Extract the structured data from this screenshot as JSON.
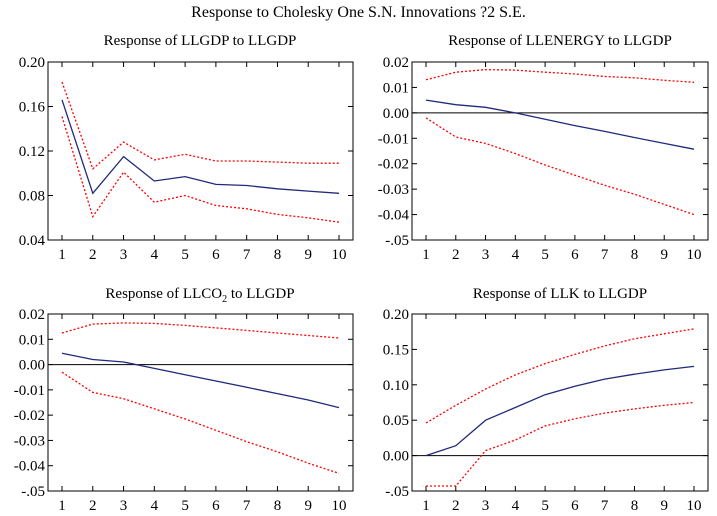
{
  "figure": {
    "title": "Response to Cholesky One S.N. Innovations ?2 S.E."
  },
  "colors": {
    "response": "#1f2a7a",
    "bands": "#ff0000",
    "zero_line": "#000000",
    "frame": "#000000"
  },
  "chart_data": [
    {
      "type": "line",
      "title": "Response of LLGDP to LLGDP",
      "title_sub": "",
      "title_rest": "",
      "x": [
        1,
        2,
        3,
        4,
        5,
        6,
        7,
        8,
        9,
        10
      ],
      "xlim": [
        1,
        10
      ],
      "ylim": [
        0.04,
        0.2
      ],
      "yticks": [
        0.04,
        0.08,
        0.12,
        0.16,
        0.2
      ],
      "ytick_labels": [
        "0.04",
        "0.08",
        "0.12",
        "0.16",
        "0.20"
      ],
      "zero_line": false,
      "series": [
        {
          "role": "response",
          "values": [
            0.166,
            0.082,
            0.115,
            0.093,
            0.097,
            0.09,
            0.089,
            0.086,
            0.084,
            0.082
          ]
        },
        {
          "role": "upper",
          "values": [
            0.182,
            0.104,
            0.128,
            0.112,
            0.117,
            0.111,
            0.111,
            0.11,
            0.109,
            0.109
          ]
        },
        {
          "role": "lower",
          "values": [
            0.151,
            0.061,
            0.101,
            0.074,
            0.08,
            0.071,
            0.068,
            0.063,
            0.06,
            0.056
          ]
        }
      ]
    },
    {
      "type": "line",
      "title": "Response of LLENERGY to LLGDP",
      "title_sub": "",
      "title_rest": "",
      "x": [
        1,
        2,
        3,
        4,
        5,
        6,
        7,
        8,
        9,
        10
      ],
      "xlim": [
        1,
        10
      ],
      "ylim": [
        -0.05,
        0.02
      ],
      "yticks": [
        -0.05,
        -0.04,
        -0.03,
        -0.02,
        -0.01,
        0.0,
        0.01,
        0.02
      ],
      "ytick_labels": [
        "-.05",
        "-0.04",
        "-0.03",
        "-0.02",
        "-0.01",
        "0.00",
        "0.01",
        "0.02"
      ],
      "zero_line": true,
      "series": [
        {
          "role": "response",
          "values": [
            0.005,
            0.0032,
            0.0022,
            0.0,
            -0.0025,
            -0.005,
            -0.0073,
            -0.0097,
            -0.012,
            -0.0143
          ]
        },
        {
          "role": "upper",
          "values": [
            0.013,
            0.016,
            0.017,
            0.0168,
            0.016,
            0.0153,
            0.0143,
            0.0138,
            0.0128,
            0.012
          ]
        },
        {
          "role": "lower",
          "values": [
            -0.002,
            -0.0095,
            -0.012,
            -0.016,
            -0.0205,
            -0.0245,
            -0.0285,
            -0.032,
            -0.036,
            -0.04
          ]
        }
      ]
    },
    {
      "type": "line",
      "title": "Response of LLCO",
      "title_sub": "2",
      "title_rest": " to LLGDP",
      "x": [
        1,
        2,
        3,
        4,
        5,
        6,
        7,
        8,
        9,
        10
      ],
      "xlim": [
        1,
        10
      ],
      "ylim": [
        -0.05,
        0.02
      ],
      "yticks": [
        -0.05,
        -0.04,
        -0.03,
        -0.02,
        -0.01,
        0.0,
        0.01,
        0.02
      ],
      "ytick_labels": [
        "-.05",
        "-0.04",
        "-0.03",
        "-0.02",
        "-0.01",
        "0.00",
        "0.01",
        "0.02"
      ],
      "zero_line": true,
      "series": [
        {
          "role": "response",
          "values": [
            0.0045,
            0.002,
            0.001,
            -0.0015,
            -0.004,
            -0.0065,
            -0.009,
            -0.0115,
            -0.014,
            -0.017
          ]
        },
        {
          "role": "upper",
          "values": [
            0.0125,
            0.016,
            0.0165,
            0.0163,
            0.0155,
            0.0145,
            0.0135,
            0.0125,
            0.0115,
            0.0105
          ]
        },
        {
          "role": "lower",
          "values": [
            -0.003,
            -0.011,
            -0.0135,
            -0.0175,
            -0.0215,
            -0.026,
            -0.0305,
            -0.0345,
            -0.039,
            -0.043
          ]
        }
      ]
    },
    {
      "type": "line",
      "title": "Response of LLK to LLGDP",
      "title_sub": "",
      "title_rest": "",
      "x": [
        1,
        2,
        3,
        4,
        5,
        6,
        7,
        8,
        9,
        10
      ],
      "xlim": [
        1,
        10
      ],
      "ylim": [
        -0.05,
        0.2
      ],
      "yticks": [
        -0.05,
        0.0,
        0.05,
        0.1,
        0.15,
        0.2
      ],
      "ytick_labels": [
        "-.05",
        "0.00",
        "0.05",
        "0.10",
        "0.15",
        "0.20"
      ],
      "zero_line": true,
      "series": [
        {
          "role": "response",
          "values": [
            0.0,
            0.014,
            0.05,
            0.068,
            0.086,
            0.098,
            0.108,
            0.115,
            0.121,
            0.126
          ]
        },
        {
          "role": "upper",
          "values": [
            0.046,
            0.071,
            0.094,
            0.114,
            0.13,
            0.143,
            0.155,
            0.165,
            0.172,
            0.179
          ]
        },
        {
          "role": "lower",
          "values": [
            -0.043,
            -0.043,
            0.007,
            0.022,
            0.042,
            0.052,
            0.06,
            0.066,
            0.071,
            0.075
          ]
        }
      ]
    }
  ]
}
